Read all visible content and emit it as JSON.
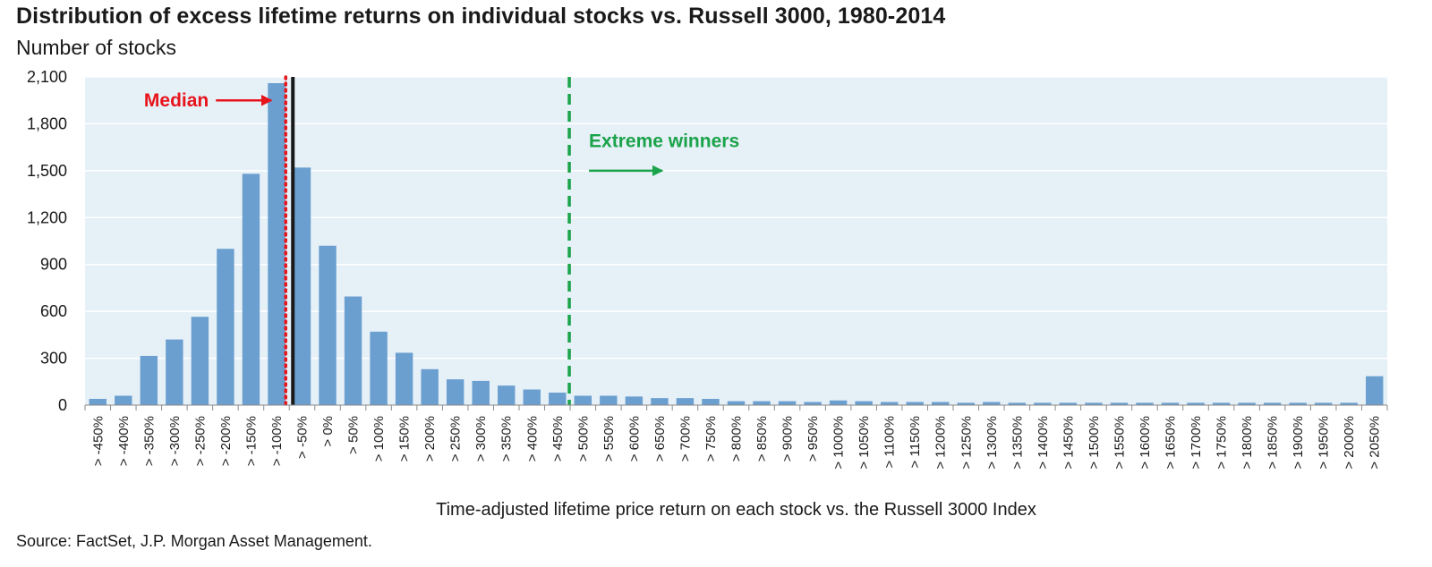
{
  "title": "Distribution of excess lifetime returns on individual stocks vs. Russell 3000, 1980-2014",
  "subtitle": "Number of stocks",
  "source": "Source: FactSet, J.P. Morgan Asset Management.",
  "colors": {
    "bar": "#6a9fd0",
    "plot_background": "#e6f0f7",
    "gridline": "#ffffff",
    "median": "#e8141c",
    "extreme_winners": "#1aa34a",
    "zero_line": "#1a1a1a"
  },
  "chart_data": {
    "type": "bar",
    "title": "Distribution of excess lifetime returns on individual stocks vs. Russell 3000, 1980-2014",
    "subtitle": "Number of stocks",
    "xlabel": "Time-adjusted lifetime price return on each stock vs. the Russell 3000 Index",
    "ylabel": "",
    "ylim": [
      0,
      2100
    ],
    "yticks": [
      0,
      300,
      600,
      900,
      1200,
      1500,
      1800,
      2100
    ],
    "ytick_labels": [
      "0",
      "300",
      "600",
      "900",
      "1,200",
      "1,500",
      "1,800",
      "2,100"
    ],
    "grid": true,
    "legend": "none",
    "categories": [
      "> -450%",
      "> -400%",
      "> -350%",
      "> -300%",
      "> -250%",
      "> -200%",
      "> -150%",
      "> -100%",
      "> -50%",
      "> 0%",
      "> 50%",
      "> 100%",
      "> 150%",
      "> 200%",
      "> 250%",
      "> 300%",
      "> 350%",
      "> 400%",
      "> 450%",
      "> 500%",
      "> 550%",
      "> 600%",
      "> 650%",
      "> 700%",
      "> 750%",
      "> 800%",
      "> 850%",
      "> 900%",
      "> 950%",
      "> 1000%",
      "> 1050%",
      "> 1100%",
      "> 1150%",
      "> 1200%",
      "> 1250%",
      "> 1300%",
      "> 1350%",
      "> 1400%",
      "> 1450%",
      "> 1500%",
      "> 1550%",
      "> 1600%",
      "> 1650%",
      "> 1700%",
      "> 1750%",
      "> 1800%",
      "> 1850%",
      "> 1900%",
      "> 1950%",
      "> 2000%",
      "> 2050%"
    ],
    "values": [
      40,
      60,
      315,
      420,
      565,
      1000,
      1480,
      2060,
      1520,
      1020,
      695,
      470,
      335,
      230,
      165,
      155,
      125,
      100,
      80,
      60,
      60,
      55,
      45,
      45,
      40,
      25,
      25,
      25,
      20,
      30,
      25,
      20,
      20,
      20,
      15,
      20,
      15,
      15,
      15,
      15,
      15,
      15,
      15,
      15,
      15,
      15,
      15,
      15,
      15,
      15,
      185
    ],
    "annotations": [
      {
        "label": "Median",
        "style": "dotted",
        "color": "#e8141c",
        "between_categories": [
          "> -100%",
          "> -50%"
        ],
        "arrow": "right"
      },
      {
        "label": "",
        "style": "solid",
        "color": "#1a1a1a",
        "between_categories": [
          "> -100%",
          "> -50%"
        ]
      },
      {
        "label": "Extreme winners",
        "style": "dashed",
        "color": "#1aa34a",
        "between_categories": [
          "> 450%",
          "> 500%"
        ],
        "arrow": "right"
      }
    ]
  }
}
